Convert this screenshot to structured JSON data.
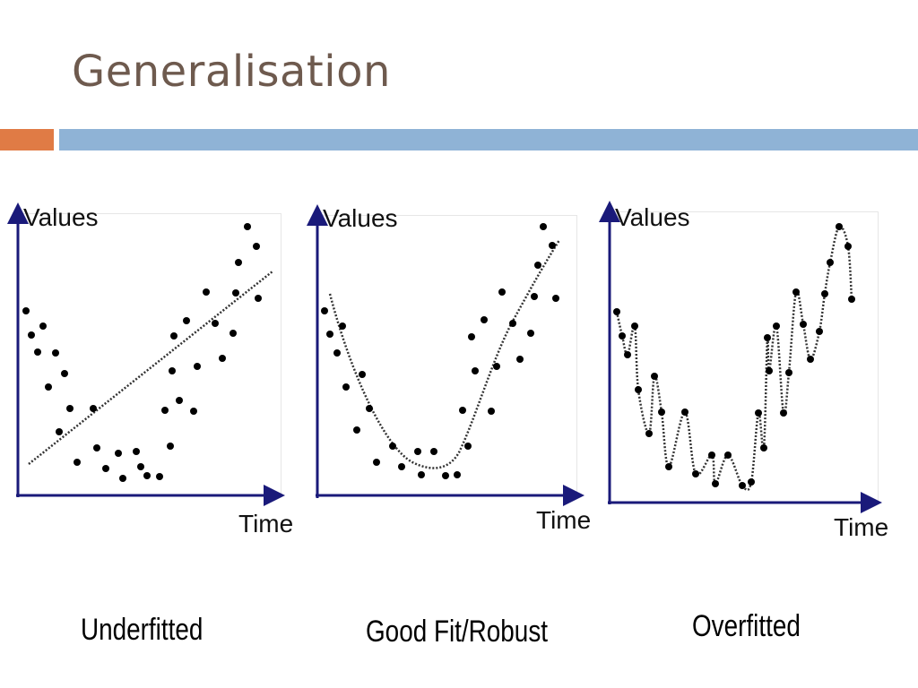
{
  "slide": {
    "title": "Generalisation"
  },
  "colors": {
    "title": "#6e5a4e",
    "accent_orange": "#e07b45",
    "accent_blue": "#8fb3d6",
    "axis": "#1a1a7a",
    "points": "#000000"
  },
  "panels": [
    {
      "y_label": "Values",
      "x_label": "Time",
      "caption": "Underfitted",
      "fit": "straight dotted line"
    },
    {
      "y_label": "Values",
      "x_label": "Time",
      "caption": "Good Fit/Robust",
      "fit": "smooth dotted curve"
    },
    {
      "y_label": "Values",
      "x_label": "Time",
      "caption": "Overfitted",
      "fit": "dotted curve through every point"
    }
  ]
}
